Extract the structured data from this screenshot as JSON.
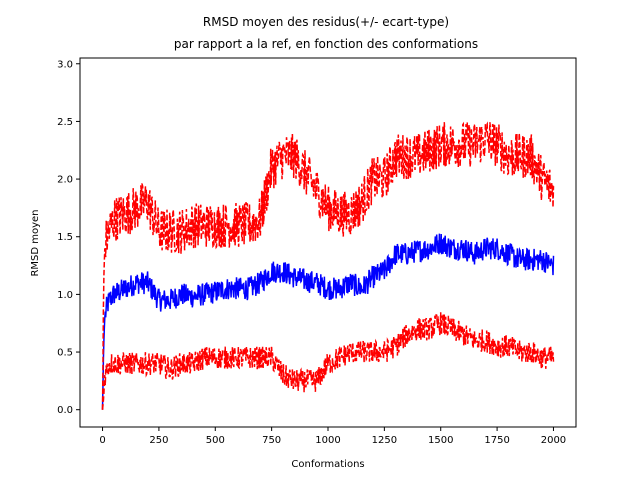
{
  "chart_data": {
    "type": "line",
    "title_line1": "RMSD moyen des residus(+/- ecart-type)",
    "title_line2": "par rapport a la ref, en fonction des conformations",
    "xlabel": "Conformations",
    "ylabel": "RMSD moyen",
    "xlim": [
      -100,
      2100
    ],
    "ylim": [
      -0.15,
      3.05
    ],
    "xticks": [
      0,
      250,
      500,
      750,
      1000,
      1250,
      1500,
      1750,
      2000
    ],
    "yticks": [
      0.0,
      0.5,
      1.0,
      1.5,
      2.0,
      2.5,
      3.0
    ],
    "xtick_labels": [
      "0",
      "250",
      "500",
      "750",
      "1000",
      "1250",
      "1500",
      "1750",
      "2000"
    ],
    "ytick_labels": [
      "0.0",
      "0.5",
      "1.0",
      "1.5",
      "2.0",
      "2.5",
      "3.0"
    ],
    "grid": false,
    "series": [
      {
        "role": "mean",
        "color": "#0000ff",
        "style": "solid",
        "x": [
          0,
          5,
          10,
          20,
          30,
          50,
          100,
          150,
          200,
          250,
          300,
          350,
          400,
          450,
          500,
          550,
          600,
          650,
          700,
          750,
          800,
          850,
          900,
          950,
          1000,
          1050,
          1100,
          1150,
          1200,
          1250,
          1300,
          1350,
          1400,
          1450,
          1500,
          1550,
          1600,
          1650,
          1700,
          1750,
          1800,
          1850,
          1900,
          1950,
          2000
        ],
        "y": [
          0.0,
          0.55,
          0.8,
          0.9,
          0.95,
          1.0,
          1.05,
          1.1,
          1.1,
          0.95,
          0.95,
          1.0,
          0.98,
          1.0,
          1.02,
          1.05,
          1.05,
          1.05,
          1.1,
          1.2,
          1.2,
          1.15,
          1.12,
          1.1,
          1.05,
          1.05,
          1.1,
          1.05,
          1.15,
          1.2,
          1.35,
          1.35,
          1.38,
          1.4,
          1.45,
          1.4,
          1.4,
          1.35,
          1.4,
          1.4,
          1.35,
          1.3,
          1.3,
          1.3,
          1.25
        ],
        "noise": 0.1
      },
      {
        "role": "mean+sd",
        "color": "#ff0000",
        "style": "dashed",
        "x": [
          0,
          5,
          10,
          20,
          30,
          50,
          100,
          150,
          200,
          250,
          300,
          350,
          400,
          450,
          500,
          550,
          600,
          650,
          700,
          750,
          800,
          850,
          900,
          950,
          1000,
          1050,
          1100,
          1150,
          1200,
          1250,
          1300,
          1350,
          1400,
          1450,
          1500,
          1550,
          1600,
          1650,
          1700,
          1750,
          1800,
          1850,
          1900,
          1950,
          2000
        ],
        "y": [
          0.0,
          1.1,
          1.4,
          1.5,
          1.55,
          1.65,
          1.7,
          1.75,
          1.8,
          1.55,
          1.55,
          1.55,
          1.6,
          1.6,
          1.6,
          1.6,
          1.6,
          1.6,
          1.65,
          2.1,
          2.2,
          2.2,
          2.05,
          1.9,
          1.75,
          1.7,
          1.7,
          1.8,
          2.0,
          2.0,
          2.2,
          2.2,
          2.2,
          2.25,
          2.3,
          2.3,
          2.3,
          2.3,
          2.35,
          2.3,
          2.2,
          2.2,
          2.2,
          2.0,
          1.9
        ],
        "noise": 0.2
      },
      {
        "role": "mean-sd",
        "color": "#ff0000",
        "style": "dashed",
        "x": [
          0,
          5,
          10,
          20,
          30,
          50,
          100,
          150,
          200,
          250,
          300,
          350,
          400,
          450,
          500,
          550,
          600,
          650,
          700,
          750,
          800,
          850,
          900,
          950,
          1000,
          1050,
          1100,
          1150,
          1200,
          1250,
          1300,
          1350,
          1400,
          1450,
          1500,
          1550,
          1600,
          1650,
          1700,
          1750,
          1800,
          1850,
          1900,
          1950,
          2000
        ],
        "y": [
          0.0,
          0.1,
          0.3,
          0.35,
          0.4,
          0.4,
          0.4,
          0.4,
          0.4,
          0.4,
          0.35,
          0.4,
          0.4,
          0.45,
          0.45,
          0.45,
          0.45,
          0.45,
          0.45,
          0.45,
          0.3,
          0.25,
          0.25,
          0.25,
          0.4,
          0.45,
          0.5,
          0.5,
          0.5,
          0.5,
          0.55,
          0.65,
          0.7,
          0.7,
          0.75,
          0.7,
          0.65,
          0.6,
          0.6,
          0.55,
          0.55,
          0.5,
          0.5,
          0.45,
          0.45
        ],
        "noise": 0.1
      }
    ]
  }
}
